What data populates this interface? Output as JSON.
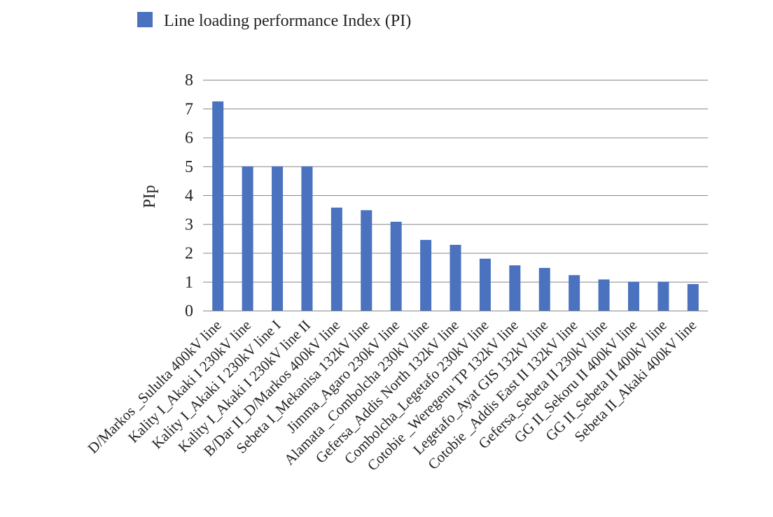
{
  "chart_data": {
    "type": "bar",
    "title": "",
    "xlabel": "",
    "ylabel": "PIp",
    "ylim": [
      0,
      8
    ],
    "yticks": [
      "0",
      "1",
      "2",
      "3",
      "4",
      "5",
      "6",
      "7",
      "8"
    ],
    "grid": true,
    "legend_position": "top",
    "bar_color": "#4a72bf",
    "categories": [
      "D/Markos _Sululta 400kV line",
      "Kality I_Akaki I 230kV line",
      "Kality I_Akaki I 230kV line I",
      "Kality I_Akaki I 230kV line II",
      "B/Dar II_D/Markos 400kV line",
      "Sebeta I_Mekanisa 132kV line",
      "Jimma_Agaro 230kV line",
      "Alamata _Combolcha 230kV line",
      "Gefersa_Addis North 132kV line",
      "Combolcha_Legetafo 230kV line",
      "Cotobie _Weregenu TP 132kV line",
      "Legetafo_Ayat GIS 132kV line",
      "Cotobie _Addis East II 132kV line",
      "Gefersa_Sebeta II 230kV line",
      "GG II_Sekoru II 400kV line",
      "GG II_Sebeta II 400kV line",
      "Sebeta II_Akaki 400kV line"
    ],
    "series": [
      {
        "name": "Line loading performance Index (PI)",
        "values": [
          7.25,
          5.0,
          5.0,
          5.0,
          3.57,
          3.48,
          3.08,
          2.45,
          2.28,
          1.8,
          1.57,
          1.48,
          1.23,
          1.08,
          1.0,
          1.0,
          0.92
        ]
      }
    ]
  }
}
